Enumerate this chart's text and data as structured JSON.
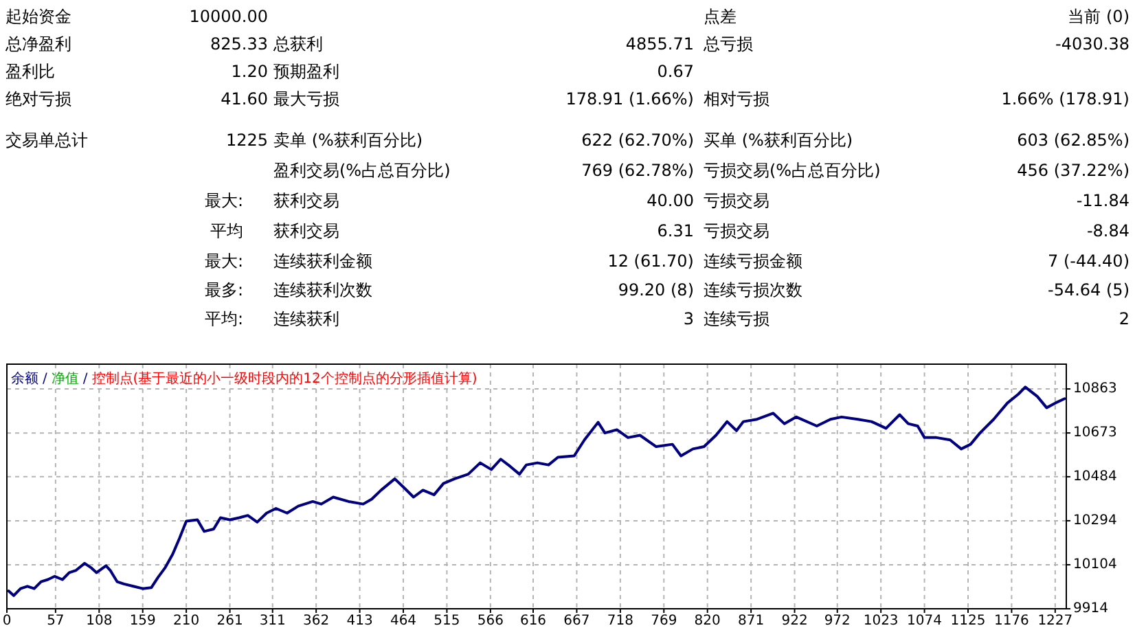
{
  "chart_data": [
    {
      "type": "other",
      "annotations": [
        "起始资金",
        "10000.00",
        "点差",
        "当前 (0)",
        "总净盈利",
        "825.33",
        "总获利",
        "4855.71",
        "总亏损",
        "-4030.38",
        "盈利比",
        "1.20",
        "预期盈利",
        "0.67",
        "绝对亏损",
        "41.60",
        "最大亏损",
        "178.91 (1.66%)",
        "相对亏损",
        "1.66% (178.91)",
        "交易单总计",
        "1225",
        "卖单 (%获利百分比)",
        "622 (62.70%)",
        "买单 (%获利百分比)",
        "603 (62.85%)",
        "盈利交易(%占总百分比)",
        "769 (62.78%)",
        "亏损交易(%占总百分比)",
        "456 (37.22%)",
        "最大:",
        "获利交易",
        "40.00",
        "亏损交易",
        "-11.84",
        "平均",
        "获利交易",
        "6.31",
        "亏损交易",
        "-8.84",
        "最大:",
        "连续获利金额",
        "12 (61.70)",
        "连续亏损金额",
        "7 (-44.40)",
        "最多:",
        "连续获利次数",
        "99.20 (8)",
        "连续亏损次数",
        "-54.64 (5)",
        "平均:",
        "连续获利",
        "3",
        "连续亏损",
        "2"
      ]
    },
    {
      "type": "line",
      "legend": "top left",
      "grid": true,
      "marker": "none",
      "line_style": "solid",
      "annotations": [
        "/",
        "净值",
        "/",
        "控制点(基于最近的小一级时段内的12个控制点的分形插值计算)"
      ],
      "xlim": [
        0,
        1240
      ],
      "xticks": [
        0,
        57,
        108,
        159,
        210,
        261,
        311,
        362,
        413,
        464,
        515,
        566,
        616,
        667,
        718,
        769,
        820,
        871,
        922,
        972,
        1023,
        1074,
        1125,
        1176,
        1227
      ],
      "ylim": [
        9914,
        10970
      ],
      "yticks": [
        9914,
        10104,
        10294,
        10484,
        10673,
        10863
      ],
      "series": [
        {
          "name": "余额",
          "color": "#000080",
          "x": [
            2,
            8,
            16,
            24,
            32,
            40,
            48,
            56,
            65,
            73,
            81,
            91,
            99,
            105,
            116,
            121,
            129,
            137,
            148,
            159,
            169,
            177,
            185,
            194,
            202,
            210,
            223,
            231,
            242,
            250,
            261,
            272,
            282,
            293,
            304,
            315,
            328,
            341,
            358,
            368,
            382,
            400,
            417,
            427,
            438,
            454,
            465,
            476,
            487,
            500,
            511,
            524,
            540,
            554,
            567,
            578,
            589,
            600,
            608,
            621,
            634,
            645,
            664,
            676,
            692,
            700,
            714,
            727,
            741,
            760,
            779,
            789,
            803,
            816,
            830,
            843,
            854,
            862,
            878,
            897,
            910,
            924,
            948,
            964,
            977,
            996,
            1012,
            1029,
            1045,
            1055,
            1066,
            1074,
            1088,
            1104,
            1117,
            1128,
            1139,
            1155,
            1171,
            1184,
            1192,
            1206,
            1217,
            1227,
            1238
          ],
          "values": [
            9991,
            9971,
            10001,
            10011,
            10001,
            10031,
            10040,
            10054,
            10040,
            10070,
            10080,
            10110,
            10090,
            10070,
            10100,
            10080,
            10031,
            10021,
            10011,
            10001,
            10005,
            10050,
            10090,
            10149,
            10218,
            10292,
            10298,
            10248,
            10258,
            10307,
            10298,
            10307,
            10317,
            10288,
            10327,
            10347,
            10327,
            10357,
            10377,
            10366,
            10396,
            10377,
            10366,
            10387,
            10426,
            10475,
            10436,
            10396,
            10426,
            10406,
            10455,
            10475,
            10495,
            10544,
            10515,
            10560,
            10529,
            10495,
            10535,
            10544,
            10535,
            10568,
            10574,
            10643,
            10719,
            10673,
            10687,
            10653,
            10663,
            10614,
            10624,
            10574,
            10604,
            10614,
            10663,
            10722,
            10683,
            10722,
            10732,
            10758,
            10713,
            10742,
            10703,
            10732,
            10742,
            10732,
            10722,
            10693,
            10752,
            10713,
            10703,
            10653,
            10653,
            10643,
            10604,
            10624,
            10673,
            10732,
            10802,
            10841,
            10871,
            10831,
            10782,
            10802,
            10821
          ]
        }
      ]
    }
  ]
}
